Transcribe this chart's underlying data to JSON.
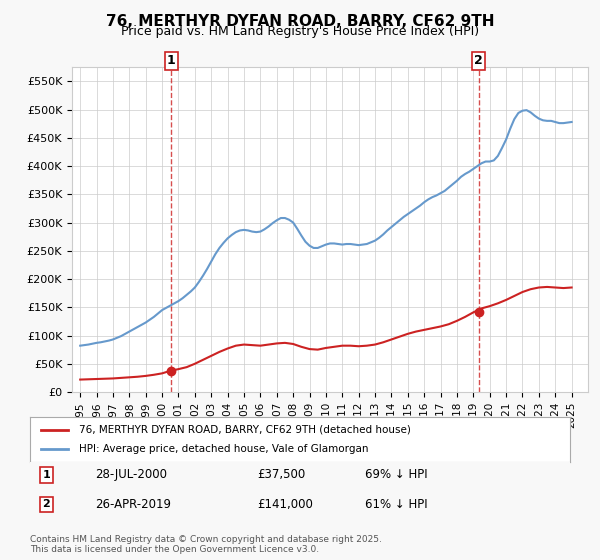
{
  "title": "76, MERTHYR DYFAN ROAD, BARRY, CF62 9TH",
  "subtitle": "Price paid vs. HM Land Registry's House Price Index (HPI)",
  "legend_line1": "76, MERTHYR DYFAN ROAD, BARRY, CF62 9TH (detached house)",
  "legend_line2": "HPI: Average price, detached house, Vale of Glamorgan",
  "footnote": "Contains HM Land Registry data © Crown copyright and database right 2025.\nThis data is licensed under the Open Government Licence v3.0.",
  "transaction1_date": 2000.57,
  "transaction1_price": 37500,
  "transaction1_label": "28-JUL-2000",
  "transaction1_price_label": "£37,500",
  "transaction1_pct": "69% ↓ HPI",
  "transaction2_date": 2019.32,
  "transaction2_price": 141000,
  "transaction2_label": "26-APR-2019",
  "transaction2_price_label": "£141,000",
  "transaction2_pct": "61% ↓ HPI",
  "hpi_color": "#6699cc",
  "price_color": "#cc2222",
  "vline_color": "#cc2222",
  "background_color": "#f8f8f8",
  "plot_bg_color": "#ffffff",
  "ylim": [
    0,
    575000
  ],
  "xlim_start": 1994.5,
  "xlim_end": 2026.0,
  "ytick_values": [
    0,
    50000,
    100000,
    150000,
    200000,
    250000,
    300000,
    350000,
    400000,
    450000,
    500000,
    550000
  ],
  "ytick_labels": [
    "£0",
    "£50K",
    "£100K",
    "£150K",
    "£200K",
    "£250K",
    "£300K",
    "£350K",
    "£400K",
    "£450K",
    "£500K",
    "£550K"
  ],
  "xtick_years": [
    1995,
    1996,
    1997,
    1998,
    1999,
    2000,
    2001,
    2002,
    2003,
    2004,
    2005,
    2006,
    2007,
    2008,
    2009,
    2010,
    2011,
    2012,
    2013,
    2014,
    2015,
    2016,
    2017,
    2018,
    2019,
    2020,
    2021,
    2022,
    2023,
    2024,
    2025
  ],
  "hpi_x": [
    1995.0,
    1995.25,
    1995.5,
    1995.75,
    1996.0,
    1996.25,
    1996.5,
    1996.75,
    1997.0,
    1997.25,
    1997.5,
    1997.75,
    1998.0,
    1998.25,
    1998.5,
    1998.75,
    1999.0,
    1999.25,
    1999.5,
    1999.75,
    2000.0,
    2000.25,
    2000.5,
    2000.75,
    2001.0,
    2001.25,
    2001.5,
    2001.75,
    2002.0,
    2002.25,
    2002.5,
    2002.75,
    2003.0,
    2003.25,
    2003.5,
    2003.75,
    2004.0,
    2004.25,
    2004.5,
    2004.75,
    2005.0,
    2005.25,
    2005.5,
    2005.75,
    2006.0,
    2006.25,
    2006.5,
    2006.75,
    2007.0,
    2007.25,
    2007.5,
    2007.75,
    2008.0,
    2008.25,
    2008.5,
    2008.75,
    2009.0,
    2009.25,
    2009.5,
    2009.75,
    2010.0,
    2010.25,
    2010.5,
    2010.75,
    2011.0,
    2011.25,
    2011.5,
    2011.75,
    2012.0,
    2012.25,
    2012.5,
    2012.75,
    2013.0,
    2013.25,
    2013.5,
    2013.75,
    2014.0,
    2014.25,
    2014.5,
    2014.75,
    2015.0,
    2015.25,
    2015.5,
    2015.75,
    2016.0,
    2016.25,
    2016.5,
    2016.75,
    2017.0,
    2017.25,
    2017.5,
    2017.75,
    2018.0,
    2018.25,
    2018.5,
    2018.75,
    2019.0,
    2019.25,
    2019.5,
    2019.75,
    2020.0,
    2020.25,
    2020.5,
    2020.75,
    2021.0,
    2021.25,
    2021.5,
    2021.75,
    2022.0,
    2022.25,
    2022.5,
    2022.75,
    2023.0,
    2023.25,
    2023.5,
    2023.75,
    2024.0,
    2024.25,
    2024.5,
    2024.75,
    2025.0
  ],
  "hpi_y": [
    82000,
    83000,
    84000,
    85500,
    87000,
    88000,
    89500,
    91000,
    93000,
    96000,
    99000,
    103000,
    107000,
    111000,
    115000,
    119000,
    123000,
    128000,
    133000,
    139000,
    145000,
    149000,
    153000,
    157000,
    161000,
    166000,
    172000,
    178000,
    185000,
    195000,
    206000,
    218000,
    231000,
    244000,
    255000,
    264000,
    272000,
    278000,
    283000,
    286000,
    287000,
    286000,
    284000,
    283000,
    284000,
    288000,
    293000,
    299000,
    304000,
    308000,
    308000,
    305000,
    300000,
    289000,
    277000,
    266000,
    259000,
    255000,
    255000,
    258000,
    261000,
    263000,
    263000,
    262000,
    261000,
    262000,
    262000,
    261000,
    260000,
    261000,
    262000,
    265000,
    268000,
    273000,
    279000,
    286000,
    292000,
    298000,
    304000,
    310000,
    315000,
    320000,
    325000,
    330000,
    336000,
    341000,
    345000,
    348000,
    352000,
    356000,
    362000,
    368000,
    374000,
    381000,
    386000,
    390000,
    395000,
    400000,
    405000,
    408000,
    408000,
    410000,
    418000,
    432000,
    447000,
    466000,
    483000,
    494000,
    498000,
    499000,
    495000,
    489000,
    484000,
    481000,
    480000,
    480000,
    478000,
    476000,
    476000,
    477000,
    478000
  ],
  "price_x": [
    1995.0,
    1995.5,
    1996.0,
    1996.5,
    1997.0,
    1997.5,
    1998.0,
    1998.5,
    1999.0,
    1999.5,
    2000.0,
    2000.5,
    2001.0,
    2001.5,
    2002.0,
    2002.5,
    2003.0,
    2003.5,
    2004.0,
    2004.5,
    2005.0,
    2005.5,
    2006.0,
    2006.5,
    2007.0,
    2007.5,
    2008.0,
    2008.5,
    2009.0,
    2009.5,
    2010.0,
    2010.5,
    2011.0,
    2011.5,
    2012.0,
    2012.5,
    2013.0,
    2013.5,
    2014.0,
    2014.5,
    2015.0,
    2015.5,
    2016.0,
    2016.5,
    2017.0,
    2017.5,
    2018.0,
    2018.5,
    2019.0,
    2019.5,
    2020.0,
    2020.5,
    2021.0,
    2021.5,
    2022.0,
    2022.5,
    2023.0,
    2023.5,
    2024.0,
    2024.5,
    2025.0
  ],
  "price_y": [
    22000,
    22500,
    23000,
    23500,
    24000,
    25000,
    26000,
    27000,
    28500,
    30500,
    33000,
    37500,
    40500,
    44000,
    50000,
    57000,
    64000,
    71000,
    77000,
    82000,
    84000,
    83000,
    82000,
    84000,
    86000,
    87000,
    85000,
    80000,
    76000,
    75000,
    78000,
    80000,
    82000,
    82000,
    81000,
    82000,
    84000,
    88000,
    93000,
    98000,
    103000,
    107000,
    110000,
    113000,
    116000,
    120000,
    126000,
    133000,
    141000,
    148000,
    152000,
    157000,
    163000,
    170000,
    177000,
    182000,
    185000,
    186000,
    185000,
    184000,
    185000
  ]
}
